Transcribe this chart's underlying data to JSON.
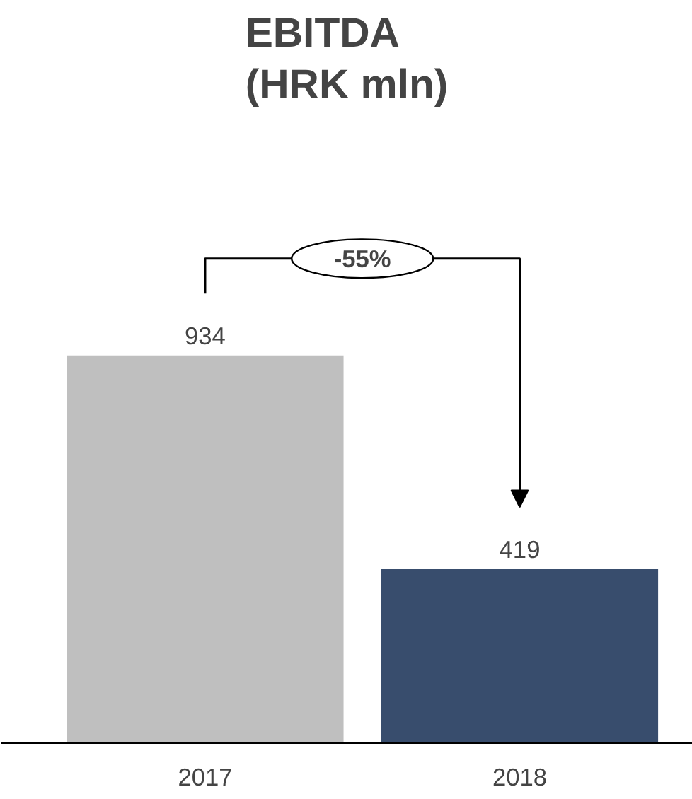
{
  "chart_data": {
    "type": "bar",
    "title": "EBITDA\n(HRK mln)",
    "categories": [
      "2017",
      "2018"
    ],
    "values": [
      934,
      419
    ],
    "colors": [
      "#bfbfbf",
      "#384d6d"
    ],
    "data_labels": true,
    "annotations": [
      "-55%"
    ]
  }
}
